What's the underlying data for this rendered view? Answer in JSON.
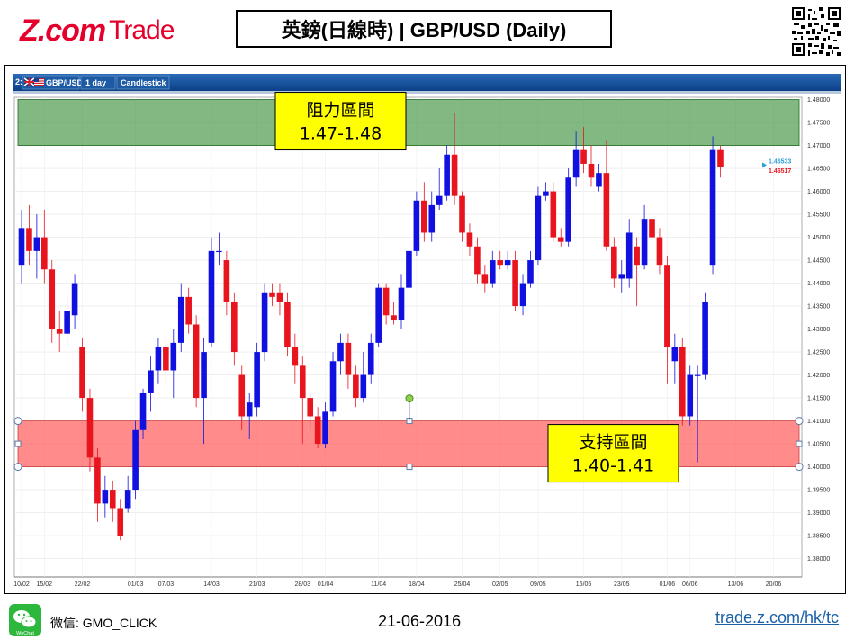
{
  "header": {
    "logo_main": "Z.com",
    "logo_sub": "Trade",
    "title": "英鎊(日線時) | GBP/USD (Daily)"
  },
  "toolbar": {
    "index": "2:",
    "symbol": "GBP/USD",
    "timeframe": "1 day",
    "chart_type": "Candlestick"
  },
  "footer": {
    "wechat_label": "WeChat",
    "wechat_id": "微信: GMO_CLICK",
    "date": "21-06-2016",
    "link": "trade.z.com/hk/tc"
  },
  "colors": {
    "up": "#1010e0",
    "down": "#e8141e",
    "resistance_fill": "#2e8b2e",
    "support_fill": "#ff5a5a",
    "label_box": "#ffff00",
    "brand": "#e4002b"
  },
  "chart_data": {
    "type": "candlestick",
    "ylim": [
      1.376,
      1.4805
    ],
    "y_ticks": [
      "1.48000",
      "1.47500",
      "1.47000",
      "1.46500",
      "1.46000",
      "1.45500",
      "1.45000",
      "1.44500",
      "1.44000",
      "1.43500",
      "1.43000",
      "1.42500",
      "1.42000",
      "1.41500",
      "1.41000",
      "1.40500",
      "1.40000",
      "1.39500",
      "1.39000",
      "1.38500",
      "1.38000"
    ],
    "x_ticks": [
      "10/02",
      "15/02",
      "22/02",
      "01/03",
      "07/03",
      "14/03",
      "21/03",
      "28/03",
      "01/04",
      "11/04",
      "18/04",
      "25/04",
      "02/05",
      "09/05",
      "16/05",
      "23/05",
      "01/06",
      "06/06",
      "13/06",
      "20/06"
    ],
    "x_tick_positions": [
      0,
      3,
      8,
      15,
      19,
      25,
      31,
      37,
      40,
      47,
      52,
      58,
      63,
      68,
      74,
      79,
      85,
      88,
      94,
      99
    ],
    "price_labels": [
      {
        "text": "1.46533",
        "value": 1.46533,
        "color": "#2c9ed8"
      },
      {
        "text": "1.46517",
        "value": 1.46517,
        "color": "#e8141e"
      }
    ],
    "zones": [
      {
        "name": "resistance",
        "label_line1": "阻力區間",
        "label_line2": "1.47-1.48",
        "from": 1.47,
        "to": 1.48
      },
      {
        "name": "support",
        "label_line1": "支持區間",
        "label_line2": "1.40-1.41",
        "from": 1.4,
        "to": 1.41
      }
    ],
    "candles": [
      {
        "o": 1.444,
        "c": 1.452,
        "h": 1.456,
        "l": 1.44
      },
      {
        "o": 1.452,
        "c": 1.447,
        "h": 1.457,
        "l": 1.444
      },
      {
        "o": 1.447,
        "c": 1.45,
        "h": 1.455,
        "l": 1.441
      },
      {
        "o": 1.45,
        "c": 1.443,
        "h": 1.456,
        "l": 1.44
      },
      {
        "o": 1.443,
        "c": 1.43,
        "h": 1.445,
        "l": 1.427
      },
      {
        "o": 1.43,
        "c": 1.429,
        "h": 1.434,
        "l": 1.425
      },
      {
        "o": 1.429,
        "c": 1.434,
        "h": 1.437,
        "l": 1.426
      },
      {
        "o": 1.433,
        "c": 1.44,
        "h": 1.442,
        "l": 1.43
      },
      {
        "o": 1.426,
        "c": 1.415,
        "h": 1.428,
        "l": 1.412
      },
      {
        "o": 1.415,
        "c": 1.402,
        "h": 1.417,
        "l": 1.399
      },
      {
        "o": 1.402,
        "c": 1.392,
        "h": 1.404,
        "l": 1.388
      },
      {
        "o": 1.392,
        "c": 1.395,
        "h": 1.398,
        "l": 1.389
      },
      {
        "o": 1.395,
        "c": 1.391,
        "h": 1.397,
        "l": 1.388
      },
      {
        "o": 1.391,
        "c": 1.385,
        "h": 1.393,
        "l": 1.384
      },
      {
        "o": 1.391,
        "c": 1.395,
        "h": 1.398,
        "l": 1.39
      },
      {
        "o": 1.395,
        "c": 1.408,
        "h": 1.41,
        "l": 1.393
      },
      {
        "o": 1.408,
        "c": 1.416,
        "h": 1.417,
        "l": 1.406
      },
      {
        "o": 1.416,
        "c": 1.421,
        "h": 1.424,
        "l": 1.412
      },
      {
        "o": 1.421,
        "c": 1.426,
        "h": 1.428,
        "l": 1.418
      },
      {
        "o": 1.426,
        "c": 1.421,
        "h": 1.428,
        "l": 1.418
      },
      {
        "o": 1.421,
        "c": 1.427,
        "h": 1.43,
        "l": 1.415
      },
      {
        "o": 1.427,
        "c": 1.437,
        "h": 1.44,
        "l": 1.425
      },
      {
        "o": 1.437,
        "c": 1.431,
        "h": 1.439,
        "l": 1.429
      },
      {
        "o": 1.431,
        "c": 1.415,
        "h": 1.433,
        "l": 1.413
      },
      {
        "o": 1.415,
        "c": 1.425,
        "h": 1.428,
        "l": 1.405
      },
      {
        "o": 1.427,
        "c": 1.447,
        "h": 1.45,
        "l": 1.426
      },
      {
        "o": 1.447,
        "c": 1.447,
        "h": 1.451,
        "l": 1.444
      },
      {
        "o": 1.445,
        "c": 1.436,
        "h": 1.447,
        "l": 1.433
      },
      {
        "o": 1.436,
        "c": 1.425,
        "h": 1.438,
        "l": 1.422
      },
      {
        "o": 1.42,
        "c": 1.411,
        "h": 1.422,
        "l": 1.408
      },
      {
        "o": 1.411,
        "c": 1.414,
        "h": 1.416,
        "l": 1.406
      },
      {
        "o": 1.413,
        "c": 1.425,
        "h": 1.427,
        "l": 1.411
      },
      {
        "o": 1.425,
        "c": 1.438,
        "h": 1.44,
        "l": 1.423
      },
      {
        "o": 1.438,
        "c": 1.437,
        "h": 1.44,
        "l": 1.435
      },
      {
        "o": 1.438,
        "c": 1.436,
        "h": 1.44,
        "l": 1.433
      },
      {
        "o": 1.436,
        "c": 1.426,
        "h": 1.438,
        "l": 1.424
      },
      {
        "o": 1.426,
        "c": 1.422,
        "h": 1.429,
        "l": 1.418
      },
      {
        "o": 1.422,
        "c": 1.415,
        "h": 1.424,
        "l": 1.405
      },
      {
        "o": 1.415,
        "c": 1.411,
        "h": 1.416,
        "l": 1.408
      },
      {
        "o": 1.411,
        "c": 1.405,
        "h": 1.413,
        "l": 1.404
      },
      {
        "o": 1.405,
        "c": 1.412,
        "h": 1.414,
        "l": 1.404
      },
      {
        "o": 1.412,
        "c": 1.423,
        "h": 1.425,
        "l": 1.411
      },
      {
        "o": 1.423,
        "c": 1.427,
        "h": 1.429,
        "l": 1.42
      },
      {
        "o": 1.427,
        "c": 1.42,
        "h": 1.429,
        "l": 1.417
      },
      {
        "o": 1.42,
        "c": 1.415,
        "h": 1.422,
        "l": 1.413
      },
      {
        "o": 1.415,
        "c": 1.42,
        "h": 1.425,
        "l": 1.414
      },
      {
        "o": 1.42,
        "c": 1.427,
        "h": 1.429,
        "l": 1.418
      },
      {
        "o": 1.427,
        "c": 1.439,
        "h": 1.44,
        "l": 1.426
      },
      {
        "o": 1.439,
        "c": 1.433,
        "h": 1.44,
        "l": 1.431
      },
      {
        "o": 1.433,
        "c": 1.432,
        "h": 1.436,
        "l": 1.431
      },
      {
        "o": 1.432,
        "c": 1.439,
        "h": 1.442,
        "l": 1.43
      },
      {
        "o": 1.439,
        "c": 1.447,
        "h": 1.449,
        "l": 1.437
      },
      {
        "o": 1.447,
        "c": 1.458,
        "h": 1.46,
        "l": 1.446
      },
      {
        "o": 1.458,
        "c": 1.451,
        "h": 1.462,
        "l": 1.449
      },
      {
        "o": 1.451,
        "c": 1.457,
        "h": 1.46,
        "l": 1.449
      },
      {
        "o": 1.457,
        "c": 1.459,
        "h": 1.465,
        "l": 1.456
      },
      {
        "o": 1.459,
        "c": 1.468,
        "h": 1.47,
        "l": 1.458
      },
      {
        "o": 1.468,
        "c": 1.459,
        "h": 1.477,
        "l": 1.457
      },
      {
        "o": 1.459,
        "c": 1.451,
        "h": 1.46,
        "l": 1.449
      },
      {
        "o": 1.451,
        "c": 1.448,
        "h": 1.453,
        "l": 1.446
      },
      {
        "o": 1.448,
        "c": 1.442,
        "h": 1.45,
        "l": 1.44
      },
      {
        "o": 1.442,
        "c": 1.44,
        "h": 1.444,
        "l": 1.438
      },
      {
        "o": 1.44,
        "c": 1.445,
        "h": 1.447,
        "l": 1.439
      },
      {
        "o": 1.445,
        "c": 1.444,
        "h": 1.447,
        "l": 1.443
      },
      {
        "o": 1.444,
        "c": 1.445,
        "h": 1.447,
        "l": 1.443
      },
      {
        "o": 1.445,
        "c": 1.435,
        "h": 1.447,
        "l": 1.434
      },
      {
        "o": 1.435,
        "c": 1.44,
        "h": 1.442,
        "l": 1.433
      },
      {
        "o": 1.44,
        "c": 1.445,
        "h": 1.447,
        "l": 1.439
      },
      {
        "o": 1.445,
        "c": 1.459,
        "h": 1.461,
        "l": 1.444
      },
      {
        "o": 1.459,
        "c": 1.46,
        "h": 1.462,
        "l": 1.458
      },
      {
        "o": 1.46,
        "c": 1.45,
        "h": 1.462,
        "l": 1.449
      },
      {
        "o": 1.45,
        "c": 1.449,
        "h": 1.452,
        "l": 1.448
      },
      {
        "o": 1.449,
        "c": 1.463,
        "h": 1.465,
        "l": 1.448
      },
      {
        "o": 1.463,
        "c": 1.469,
        "h": 1.473,
        "l": 1.461
      },
      {
        "o": 1.469,
        "c": 1.466,
        "h": 1.474,
        "l": 1.464
      },
      {
        "o": 1.466,
        "c": 1.463,
        "h": 1.47,
        "l": 1.461
      },
      {
        "o": 1.461,
        "c": 1.464,
        "h": 1.466,
        "l": 1.46
      },
      {
        "o": 1.464,
        "c": 1.448,
        "h": 1.471,
        "l": 1.447
      },
      {
        "o": 1.448,
        "c": 1.441,
        "h": 1.45,
        "l": 1.439
      },
      {
        "o": 1.441,
        "c": 1.442,
        "h": 1.445,
        "l": 1.438
      },
      {
        "o": 1.441,
        "c": 1.451,
        "h": 1.454,
        "l": 1.439
      },
      {
        "o": 1.448,
        "c": 1.444,
        "h": 1.45,
        "l": 1.435
      },
      {
        "o": 1.444,
        "c": 1.454,
        "h": 1.457,
        "l": 1.443
      },
      {
        "o": 1.454,
        "c": 1.45,
        "h": 1.456,
        "l": 1.448
      },
      {
        "o": 1.45,
        "c": 1.444,
        "h": 1.452,
        "l": 1.442
      },
      {
        "o": 1.444,
        "c": 1.426,
        "h": 1.446,
        "l": 1.418
      },
      {
        "o": 1.423,
        "c": 1.426,
        "h": 1.429,
        "l": 1.418
      },
      {
        "o": 1.426,
        "c": 1.411,
        "h": 1.428,
        "l": 1.409
      },
      {
        "o": 1.411,
        "c": 1.42,
        "h": 1.422,
        "l": 1.409
      },
      {
        "o": 1.42,
        "c": 1.42,
        "h": 1.422,
        "l": 1.401
      },
      {
        "o": 1.42,
        "c": 1.436,
        "h": 1.438,
        "l": 1.419
      },
      {
        "o": 1.444,
        "c": 1.469,
        "h": 1.472,
        "l": 1.442
      },
      {
        "o": 1.469,
        "c": 1.4653,
        "h": 1.47,
        "l": 1.463
      }
    ]
  }
}
